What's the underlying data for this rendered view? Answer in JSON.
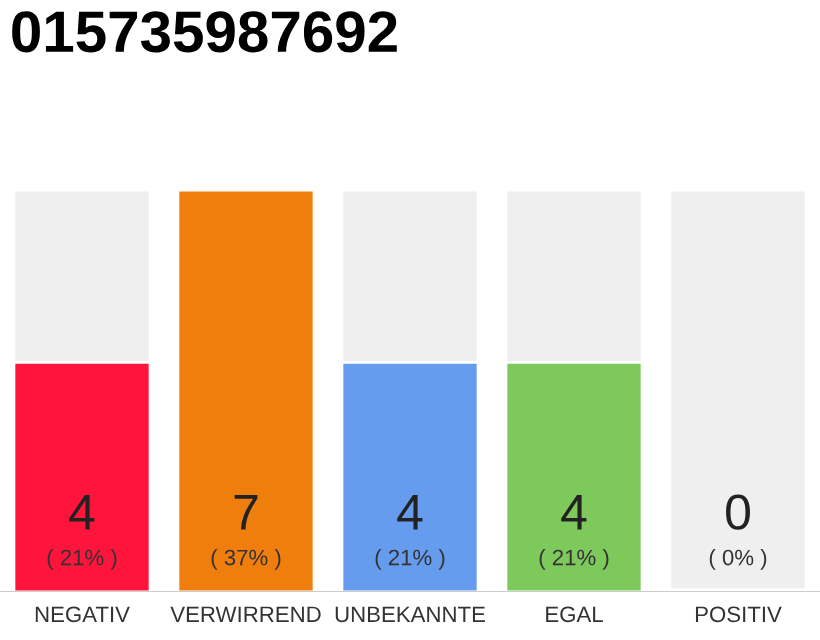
{
  "chart_data": {
    "type": "bar",
    "title": "015735987692",
    "categories": [
      "NEGATIV",
      "VERWIRREND",
      "UNBEKANNTE",
      "EGAL",
      "POSITIV"
    ],
    "values": [
      4,
      7,
      4,
      4,
      0
    ],
    "colors": [
      "#ff143c",
      "#f07e0c",
      "#669cee",
      "#7ec95c",
      "#21a048"
    ],
    "value_labels": [
      "4",
      "7",
      "4",
      "4",
      "0"
    ],
    "annotations": [
      {
        "text": "( 21% )",
        "x": "NEGATIV",
        "y": 0
      },
      {
        "text": "( 37% )",
        "x": "VERWIRREND",
        "y": 0
      },
      {
        "text": "( 21% )",
        "x": "UNBEKANNTE",
        "y": 0
      },
      {
        "text": "( 21% )",
        "x": "EGAL",
        "y": 0
      },
      {
        "text": "( 0% )",
        "x": "POSITIV",
        "y": 0
      }
    ],
    "grid": false,
    "legend": false
  }
}
